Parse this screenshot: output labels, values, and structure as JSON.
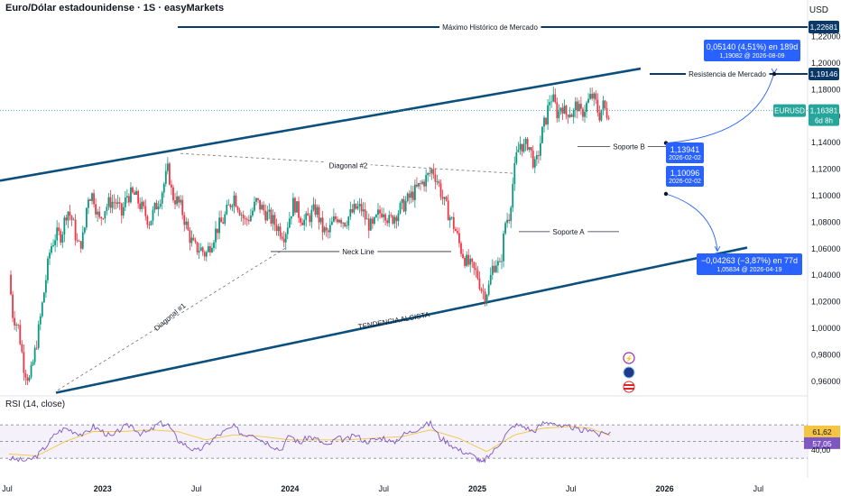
{
  "header": {
    "title": "Euro/Dólar estadounidense · 1S · easyMarkets",
    "currency": "USD"
  },
  "chart_data": {
    "type": "candlestick",
    "symbol": "EURUSD",
    "last_price": "1,16381",
    "countdown": "6d 8h",
    "y_ticks": [
      "1,22000",
      "1,20000",
      "1,18000",
      "1,16000",
      "1,14000",
      "1,12000",
      "1,10000",
      "1,08000",
      "1,06000",
      "1,04000",
      "1,02000",
      "1,00000",
      "0,98000",
      "0,96000"
    ],
    "y_tick_values": [
      1.22,
      1.2,
      1.18,
      1.16,
      1.14,
      1.12,
      1.1,
      1.08,
      1.06,
      1.04,
      1.02,
      1.0,
      0.98,
      0.96
    ],
    "ylim": [
      0.95,
      1.235
    ],
    "x_ticks": [
      {
        "label": "Jul",
        "t": 0
      },
      {
        "label": "2023",
        "t": 1
      },
      {
        "label": "Jul",
        "t": 2
      },
      {
        "label": "2024",
        "t": 3
      },
      {
        "label": "Jul",
        "t": 4
      },
      {
        "label": "2025",
        "t": 5
      },
      {
        "label": "Jul",
        "t": 6
      },
      {
        "label": "2026",
        "t": 7
      },
      {
        "label": "Jul",
        "t": 8
      }
    ],
    "price_path": [
      [
        0.0,
        1.04
      ],
      [
        0.04,
        1.01
      ],
      [
        0.1,
        1.0
      ],
      [
        0.16,
        0.97
      ],
      [
        0.22,
        0.96
      ],
      [
        0.26,
        0.975
      ],
      [
        0.32,
        1.0
      ],
      [
        0.38,
        1.03
      ],
      [
        0.44,
        1.06
      ],
      [
        0.5,
        1.07
      ],
      [
        0.56,
        1.07
      ],
      [
        0.62,
        1.09
      ],
      [
        0.68,
        1.08
      ],
      [
        0.74,
        1.06
      ],
      [
        0.8,
        1.07
      ],
      [
        0.84,
        1.1
      ],
      [
        0.9,
        1.1
      ],
      [
        0.96,
        1.08
      ],
      [
        1.02,
        1.09
      ],
      [
        1.08,
        1.095
      ],
      [
        1.14,
        1.095
      ],
      [
        1.2,
        1.085
      ],
      [
        1.26,
        1.1
      ],
      [
        1.34,
        1.1
      ],
      [
        1.42,
        1.09
      ],
      [
        1.5,
        1.08
      ],
      [
        1.56,
        1.09
      ],
      [
        1.62,
        1.1
      ],
      [
        1.66,
        1.11
      ],
      [
        1.7,
        1.12
      ],
      [
        1.74,
        1.1
      ],
      [
        1.8,
        1.095
      ],
      [
        1.84,
        1.09
      ],
      [
        1.88,
        1.08
      ],
      [
        1.92,
        1.07
      ],
      [
        1.98,
        1.06
      ],
      [
        2.04,
        1.06
      ],
      [
        2.1,
        1.055
      ],
      [
        2.16,
        1.065
      ],
      [
        2.22,
        1.075
      ],
      [
        2.28,
        1.08
      ],
      [
        2.34,
        1.09
      ],
      [
        2.4,
        1.1
      ],
      [
        2.46,
        1.09
      ],
      [
        2.52,
        1.08
      ],
      [
        2.58,
        1.085
      ],
      [
        2.64,
        1.095
      ],
      [
        2.7,
        1.09
      ],
      [
        2.76,
        1.085
      ],
      [
        2.82,
        1.08
      ],
      [
        2.88,
        1.075
      ],
      [
        2.94,
        1.07
      ],
      [
        3.0,
        1.085
      ],
      [
        3.04,
        1.095
      ],
      [
        3.1,
        1.085
      ],
      [
        3.16,
        1.08
      ],
      [
        3.22,
        1.085
      ],
      [
        3.28,
        1.09
      ],
      [
        3.34,
        1.075
      ],
      [
        3.4,
        1.07
      ],
      [
        3.46,
        1.08
      ],
      [
        3.52,
        1.085
      ],
      [
        3.58,
        1.08
      ],
      [
        3.64,
        1.085
      ],
      [
        3.7,
        1.09
      ],
      [
        3.76,
        1.09
      ],
      [
        3.82,
        1.08
      ],
      [
        3.88,
        1.075
      ],
      [
        3.94,
        1.085
      ],
      [
        4.0,
        1.09
      ],
      [
        4.06,
        1.08
      ],
      [
        4.12,
        1.085
      ],
      [
        4.18,
        1.09
      ],
      [
        4.24,
        1.095
      ],
      [
        4.3,
        1.1
      ],
      [
        4.36,
        1.105
      ],
      [
        4.42,
        1.11
      ],
      [
        4.48,
        1.115
      ],
      [
        4.52,
        1.12
      ],
      [
        4.58,
        1.11
      ],
      [
        4.64,
        1.095
      ],
      [
        4.7,
        1.085
      ],
      [
        4.76,
        1.075
      ],
      [
        4.82,
        1.06
      ],
      [
        4.88,
        1.05
      ],
      [
        4.94,
        1.045
      ],
      [
        5.0,
        1.04
      ],
      [
        5.04,
        1.03
      ],
      [
        5.08,
        1.025
      ],
      [
        5.12,
        1.03
      ],
      [
        5.16,
        1.045
      ],
      [
        5.2,
        1.05
      ],
      [
        5.24,
        1.045
      ],
      [
        5.26,
        1.055
      ],
      [
        5.3,
        1.08
      ],
      [
        5.34,
        1.085
      ],
      [
        5.38,
        1.11
      ],
      [
        5.42,
        1.13
      ],
      [
        5.46,
        1.14
      ],
      [
        5.5,
        1.135
      ],
      [
        5.54,
        1.14
      ],
      [
        5.58,
        1.13
      ],
      [
        5.62,
        1.12
      ],
      [
        5.66,
        1.135
      ],
      [
        5.7,
        1.15
      ],
      [
        5.74,
        1.16
      ],
      [
        5.78,
        1.175
      ],
      [
        5.82,
        1.17
      ],
      [
        5.86,
        1.16
      ],
      [
        5.9,
        1.17
      ],
      [
        5.94,
        1.16
      ],
      [
        5.98,
        1.165
      ],
      [
        6.02,
        1.16
      ],
      [
        6.06,
        1.17
      ],
      [
        6.1,
        1.16
      ],
      [
        6.14,
        1.165
      ],
      [
        6.18,
        1.17
      ],
      [
        6.22,
        1.175
      ],
      [
        6.26,
        1.17
      ],
      [
        6.3,
        1.16
      ],
      [
        6.34,
        1.168
      ],
      [
        6.38,
        1.162
      ],
      [
        6.42,
        1.164
      ]
    ],
    "annotations": [
      {
        "name": "max-historico-label",
        "text": "Máximo Histórico de Mercado",
        "y": 1.22681,
        "price_tag": "1,22681",
        "color": "#0b3a6a"
      },
      {
        "name": "resistencia-label",
        "text": "Resistencia de Mercado",
        "y": 1.19146,
        "price_tag": "1,19146",
        "color": "#0b3a6a"
      },
      {
        "name": "soporte-b-label",
        "text": "Soporte B",
        "y": 1.1368
      },
      {
        "name": "soporte-a-label",
        "text": "Soporte A",
        "y": 1.0725
      },
      {
        "name": "neck-line-label",
        "text": "Neck Line",
        "y": 1.0575
      },
      {
        "name": "diagonal-2-label",
        "text": "Diagonal #2"
      },
      {
        "name": "diagonal-1-label",
        "text": "Diagonal #1"
      },
      {
        "name": "tendencia-label",
        "text": "TENDENCIA ALCISTA"
      }
    ],
    "callouts": [
      {
        "name": "callout-up",
        "line1": "0,05140 (4,51%) en 189d",
        "line2": "1,19082 @ 2026-08-09"
      },
      {
        "name": "callout-soporte-b",
        "line1": "1,13941",
        "line2": "2026-02-02"
      },
      {
        "name": "callout-soporte-2",
        "line1": "1,10096",
        "line2": "2026-02-02"
      },
      {
        "name": "callout-down",
        "line1": "−0,04263 (−3,87%) en 77d",
        "line2": "1,05834 @ 2026-04-19"
      }
    ],
    "rsi": {
      "title": "RSI (14, close)",
      "value": "61,62",
      "ma_value": "57,05",
      "tick": "40,00",
      "ylim": [
        15,
        95
      ],
      "levels": [
        70,
        50,
        30
      ],
      "series": [
        [
          0.0,
          30
        ],
        [
          0.1,
          28
        ],
        [
          0.2,
          27
        ],
        [
          0.3,
          33
        ],
        [
          0.4,
          45
        ],
        [
          0.5,
          60
        ],
        [
          0.6,
          66
        ],
        [
          0.7,
          62
        ],
        [
          0.8,
          58
        ],
        [
          0.9,
          68
        ],
        [
          1.0,
          62
        ],
        [
          1.1,
          55
        ],
        [
          1.2,
          66
        ],
        [
          1.3,
          70
        ],
        [
          1.4,
          60
        ],
        [
          1.5,
          62
        ],
        [
          1.6,
          72
        ],
        [
          1.7,
          70
        ],
        [
          1.8,
          52
        ],
        [
          1.9,
          45
        ],
        [
          2.0,
          38
        ],
        [
          2.1,
          45
        ],
        [
          2.2,
          55
        ],
        [
          2.3,
          62
        ],
        [
          2.4,
          68
        ],
        [
          2.5,
          58
        ],
        [
          2.6,
          60
        ],
        [
          2.7,
          52
        ],
        [
          2.8,
          46
        ],
        [
          2.9,
          40
        ],
        [
          3.0,
          58
        ],
        [
          3.1,
          48
        ],
        [
          3.2,
          56
        ],
        [
          3.3,
          52
        ],
        [
          3.4,
          44
        ],
        [
          3.5,
          54
        ],
        [
          3.6,
          52
        ],
        [
          3.7,
          58
        ],
        [
          3.8,
          50
        ],
        [
          3.9,
          52
        ],
        [
          4.0,
          55
        ],
        [
          4.1,
          48
        ],
        [
          4.2,
          58
        ],
        [
          4.3,
          62
        ],
        [
          4.4,
          68
        ],
        [
          4.5,
          72
        ],
        [
          4.6,
          55
        ],
        [
          4.7,
          48
        ],
        [
          4.8,
          40
        ],
        [
          4.9,
          36
        ],
        [
          5.0,
          30
        ],
        [
          5.05,
          24
        ],
        [
          5.1,
          30
        ],
        [
          5.2,
          42
        ],
        [
          5.3,
          58
        ],
        [
          5.4,
          70
        ],
        [
          5.5,
          68
        ],
        [
          5.6,
          62
        ],
        [
          5.7,
          72
        ],
        [
          5.8,
          74
        ],
        [
          5.9,
          66
        ],
        [
          6.0,
          68
        ],
        [
          6.1,
          62
        ],
        [
          6.2,
          66
        ],
        [
          6.3,
          58
        ],
        [
          6.42,
          61.6
        ]
      ],
      "ma": [
        [
          0.0,
          35
        ],
        [
          0.3,
          33
        ],
        [
          0.6,
          50
        ],
        [
          0.9,
          62
        ],
        [
          1.2,
          62
        ],
        [
          1.5,
          64
        ],
        [
          1.8,
          62
        ],
        [
          2.1,
          52
        ],
        [
          2.4,
          58
        ],
        [
          2.7,
          56
        ],
        [
          3.0,
          52
        ],
        [
          3.3,
          52
        ],
        [
          3.6,
          52
        ],
        [
          3.9,
          54
        ],
        [
          4.2,
          56
        ],
        [
          4.5,
          64
        ],
        [
          4.8,
          54
        ],
        [
          5.1,
          38
        ],
        [
          5.4,
          58
        ],
        [
          5.7,
          66
        ],
        [
          6.0,
          68
        ],
        [
          6.2,
          66
        ],
        [
          6.42,
          57
        ]
      ]
    }
  }
}
